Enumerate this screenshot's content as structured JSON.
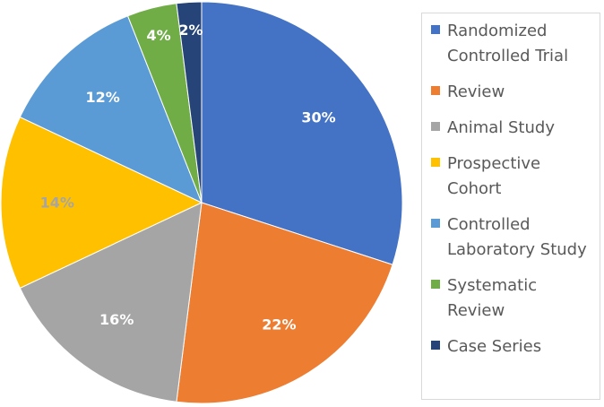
{
  "chart_data": {
    "type": "pie",
    "title": "",
    "slices": [
      {
        "label": "Randomized Controlled Trial",
        "value": 30,
        "display": "30%",
        "color": "#4472C4",
        "label_color": "#ffffff"
      },
      {
        "label": "Review",
        "value": 22,
        "display": "22%",
        "color": "#ED7D31",
        "label_color": "#ffffff"
      },
      {
        "label": "Animal Study",
        "value": 16,
        "display": "16%",
        "color": "#A5A5A5",
        "label_color": "#ffffff"
      },
      {
        "label": "Prospective Cohort",
        "value": 14,
        "display": "14%",
        "color": "#FFC000",
        "label_color": "#A5A5A5"
      },
      {
        "label": "Controlled Laboratory Study",
        "value": 12,
        "display": "12%",
        "color": "#5B9BD5",
        "label_color": "#ffffff"
      },
      {
        "label": "Systematic Review",
        "value": 4,
        "display": "4%",
        "color": "#70AD47",
        "label_color": "#ffffff"
      },
      {
        "label": "Case Series",
        "value": 2,
        "display": "2%",
        "color": "#264478",
        "label_color": "#ffffff"
      }
    ],
    "legend": {
      "position": "right",
      "entries": [
        {
          "lines": [
            "Randomized",
            "Controlled Trial"
          ],
          "color": "#4472C4"
        },
        {
          "lines": [
            "Review"
          ],
          "color": "#ED7D31"
        },
        {
          "lines": [
            "Animal Study"
          ],
          "color": "#A5A5A5"
        },
        {
          "lines": [
            "Prospective",
            "Cohort"
          ],
          "color": "#FFC000"
        },
        {
          "lines": [
            "Controlled",
            "Laboratory Study"
          ],
          "color": "#5B9BD5"
        },
        {
          "lines": [
            "Systematic",
            "Review"
          ],
          "color": "#70AD47"
        },
        {
          "lines": [
            "Case Series"
          ],
          "color": "#264478"
        }
      ]
    }
  }
}
